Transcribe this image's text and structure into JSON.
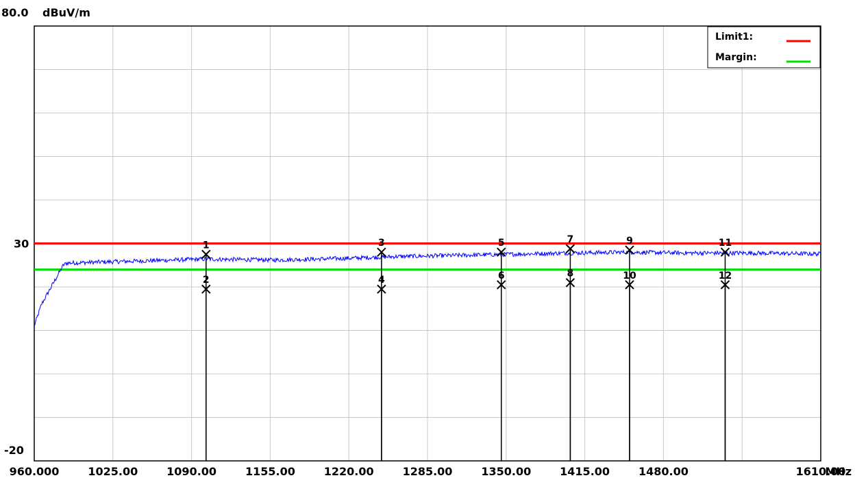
{
  "chart_data": {
    "type": "line",
    "y_unit": "dBuV/m",
    "x_unit": "MHz",
    "ylim": [
      -20,
      80
    ],
    "xlim": [
      960,
      1610
    ],
    "y_tick_labels": [
      "80.0",
      "30",
      "-20"
    ],
    "x_tick_labels": [
      "960.000",
      "1025.00",
      "1090.00",
      "1155.00",
      "1220.00",
      "1285.00",
      "1350.00",
      "1415.00",
      "1480.00",
      "1610.00"
    ],
    "legend": [
      {
        "name": "Limit1:",
        "color": "#ff0000"
      },
      {
        "name": "Margin:",
        "color": "#00dd00"
      }
    ],
    "limit_line": {
      "y": 30,
      "color": "#ff0000"
    },
    "margin_line": {
      "y": 24,
      "color": "#00dd00"
    },
    "trace": {
      "color": "#0000ff",
      "points": [
        [
          960,
          11
        ],
        [
          966,
          16
        ],
        [
          972,
          19
        ],
        [
          978,
          22
        ],
        [
          984,
          25
        ],
        [
          987,
          25.5
        ],
        [
          1000,
          25.6
        ],
        [
          1050,
          26.0
        ],
        [
          1100,
          26.4
        ],
        [
          1160,
          26.2
        ],
        [
          1220,
          26.6
        ],
        [
          1260,
          27.0
        ],
        [
          1300,
          27.2
        ],
        [
          1350,
          27.5
        ],
        [
          1400,
          27.8
        ],
        [
          1450,
          28.0
        ],
        [
          1500,
          27.8
        ],
        [
          1550,
          27.8
        ],
        [
          1610,
          27.6
        ]
      ]
    },
    "markers": [
      {
        "label": "1",
        "x": 1102,
        "y": 27.5
      },
      {
        "label": "2",
        "x": 1102,
        "y": 19.5
      },
      {
        "label": "3",
        "x": 1247,
        "y": 28.0
      },
      {
        "label": "4",
        "x": 1247,
        "y": 19.5
      },
      {
        "label": "5",
        "x": 1346,
        "y": 28.0
      },
      {
        "label": "6",
        "x": 1346,
        "y": 20.5
      },
      {
        "label": "7",
        "x": 1403,
        "y": 28.8
      },
      {
        "label": "8",
        "x": 1403,
        "y": 21.0
      },
      {
        "label": "9",
        "x": 1452,
        "y": 28.5
      },
      {
        "label": "10",
        "x": 1452,
        "y": 20.5
      },
      {
        "label": "11",
        "x": 1531,
        "y": 28.0
      },
      {
        "label": "12",
        "x": 1531,
        "y": 20.5
      }
    ]
  }
}
